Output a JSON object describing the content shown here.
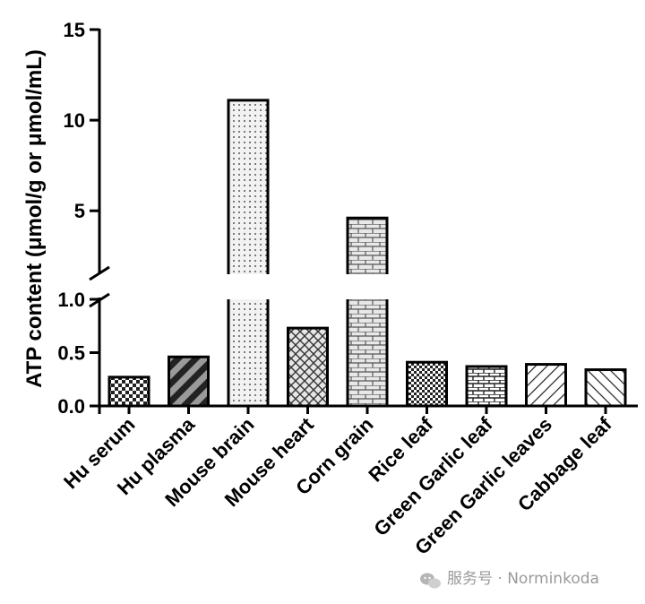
{
  "chart_data": {
    "type": "bar",
    "title": "",
    "xlabel": "",
    "ylabel": "ATP content (μmol/g or μmol/mL)",
    "y_axis_break": true,
    "segments": [
      {
        "ylim": [
          0,
          1.0
        ],
        "ticks": [
          "0.0",
          "0.5",
          "1.0"
        ]
      },
      {
        "ylim": [
          1.5,
          15
        ],
        "ticks": [
          "5",
          "10",
          "15"
        ]
      }
    ],
    "grid": false,
    "legend": "none",
    "categories": [
      "Hu serum",
      "Hu plasma",
      "Mouse brain",
      "Mouse heart",
      "Corn grain",
      "Rice leaf",
      "Green Garlic leaf",
      "Green Garlic leaves",
      "Cabbage leaf"
    ],
    "values": [
      0.27,
      0.46,
      11.1,
      0.73,
      4.6,
      0.41,
      0.37,
      0.39,
      0.34
    ],
    "fill_patterns": [
      "checker",
      "diagonal-stripes",
      "dots",
      "diamond-weave",
      "brick",
      "checker-fine",
      "brick-dense",
      "hatch-right",
      "hatch-left"
    ]
  },
  "watermark": {
    "text": "服务号 · Norminkoda"
  }
}
